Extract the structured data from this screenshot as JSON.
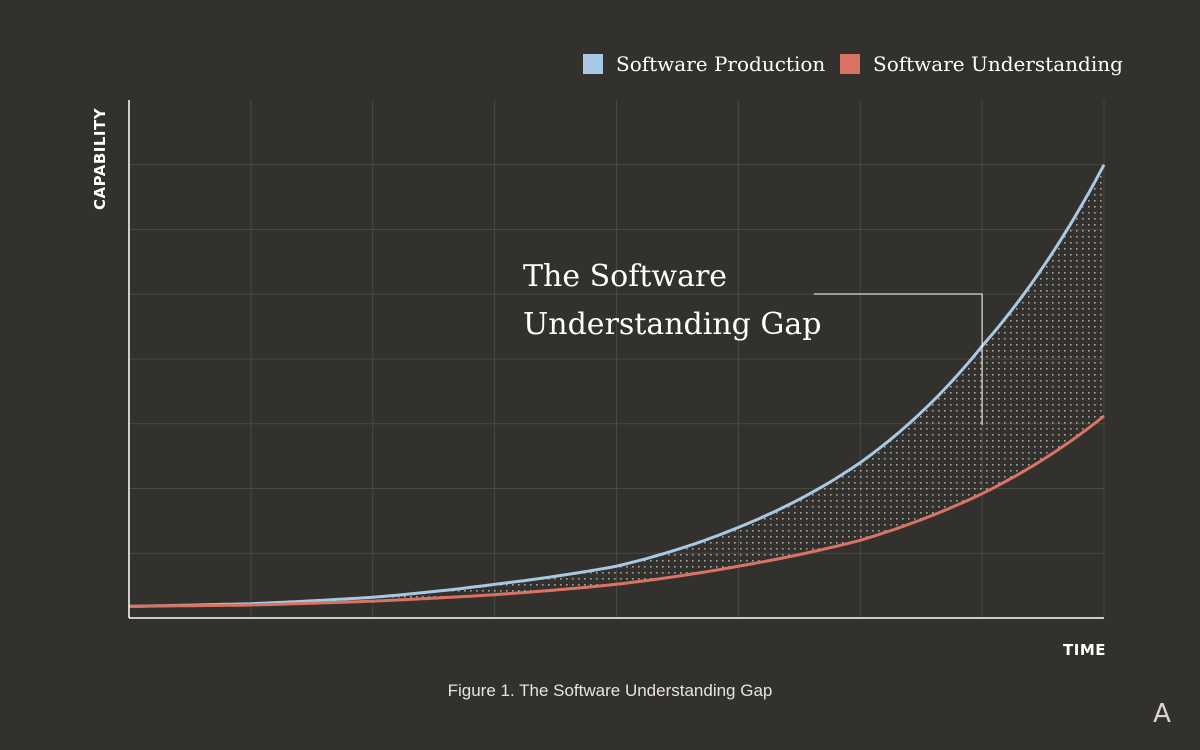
{
  "chart_data": {
    "type": "line",
    "title": "",
    "xlabel": "TIME",
    "ylabel": "CAPABILITY",
    "x_ticks_shown": false,
    "y_ticks_shown": false,
    "grid": true,
    "grid_columns": 8,
    "grid_rows": 8,
    "legend_position": "top-right",
    "series": [
      {
        "name": "Software Production",
        "color": "#a9c8e4",
        "x": [
          0,
          1,
          2,
          3,
          4,
          5,
          6,
          7,
          8
        ],
        "y": [
          0.45,
          0.55,
          0.8,
          1.3,
          2.0,
          3.5,
          6.0,
          10.5,
          17.5
        ]
      },
      {
        "name": "Software Understanding",
        "color": "#d97464",
        "x": [
          0,
          1,
          2,
          3,
          4,
          5,
          6,
          7,
          8
        ],
        "y": [
          0.45,
          0.5,
          0.65,
          0.9,
          1.3,
          2.0,
          3.0,
          4.8,
          7.8
        ]
      }
    ],
    "ylim": [
      0,
      20
    ],
    "xlim": [
      0,
      8
    ],
    "shaded_region": {
      "between": [
        "Software Production",
        "Software Understanding"
      ],
      "style": "dotted"
    },
    "annotation": {
      "lines": [
        "The Software",
        "Understanding Gap"
      ],
      "points_to_x": 7
    }
  },
  "caption": "Figure 1. The Software Understanding Gap",
  "logo": "A"
}
